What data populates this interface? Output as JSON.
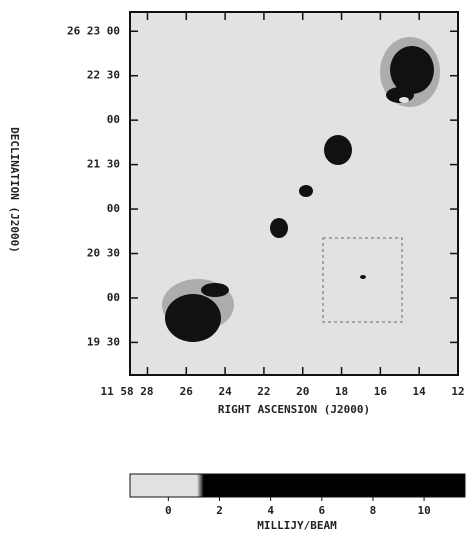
{
  "chart_data": {
    "type": "map",
    "x_label": "RIGHT ASCENSION (J2000)",
    "y_label": "DECLINATION (J2000)",
    "xlim": [
      28.9,
      12
    ],
    "xticks": [
      {
        "value": 28,
        "label": "11 58 28"
      },
      26,
      24,
      22,
      20,
      18,
      16,
      14,
      12
    ],
    "ylim": [
      8,
      253
    ],
    "yticks": [
      {
        "value": 240,
        "label": "26 23 00"
      },
      {
        "value": 210,
        "label": "22 30"
      },
      {
        "value": 180,
        "label": "00"
      },
      {
        "value": 150,
        "label": "21 30"
      },
      {
        "value": 120,
        "label": "00"
      },
      {
        "value": 90,
        "label": "20 30"
      },
      {
        "value": 60,
        "label": "00"
      },
      {
        "value": 30,
        "label": "19 30"
      }
    ],
    "colorbar": {
      "label": "MILLIJY/BEAM",
      "lim": [
        -1.5,
        11.6
      ],
      "ticks": [
        0,
        2,
        4,
        6,
        8,
        10
      ]
    }
  }
}
